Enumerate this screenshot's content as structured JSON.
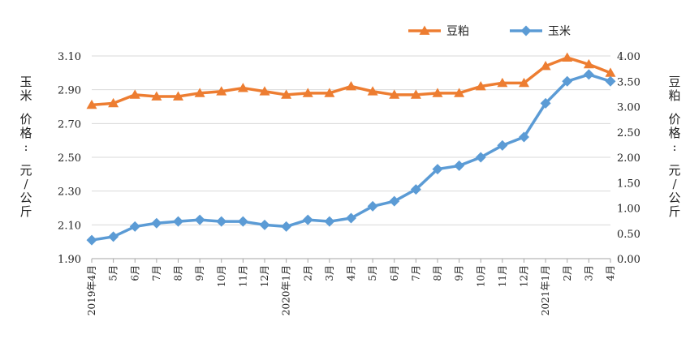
{
  "chart_data": {
    "type": "line",
    "legend_position": "top-right",
    "grid": true,
    "categories": [
      "2019年4月",
      "5月",
      "6月",
      "7月",
      "8月",
      "9月",
      "10月",
      "11月",
      "12月",
      "2020年1月",
      "2月",
      "3月",
      "4月",
      "5月",
      "6月",
      "7月",
      "8月",
      "9月",
      "10月",
      "11月",
      "12月",
      "2021年1月",
      "2月",
      "3月",
      "4月"
    ],
    "left_axis": {
      "label": "玉米  价格:  元/公斤",
      "range": [
        1.9,
        3.1
      ],
      "ticks": [
        "3.10",
        "2.90",
        "2.70",
        "2.50",
        "2.30",
        "2.10",
        "1.90"
      ]
    },
    "right_axis": {
      "label": "豆粕  价格:  元/公斤",
      "range": [
        0.0,
        4.0
      ],
      "ticks": [
        "4.00",
        "3.50",
        "3.00",
        "2.50",
        "2.00",
        "1.50",
        "1.00",
        "0.50",
        "0.00"
      ]
    },
    "series": [
      {
        "name": "豆粕",
        "axis": "left",
        "color": "#ed7d31",
        "marker": "triangle",
        "values": [
          2.81,
          2.82,
          2.87,
          2.86,
          2.86,
          2.88,
          2.89,
          2.91,
          2.89,
          2.87,
          2.88,
          2.88,
          2.92,
          2.89,
          2.87,
          2.87,
          2.88,
          2.88,
          2.92,
          2.94,
          2.94,
          3.04,
          3.09,
          3.05,
          3.0
        ]
      },
      {
        "name": "玉米",
        "axis": "left",
        "color": "#5b9bd5",
        "marker": "diamond",
        "values": [
          2.01,
          2.03,
          2.09,
          2.11,
          2.12,
          2.13,
          2.12,
          2.12,
          2.1,
          2.09,
          2.13,
          2.12,
          2.14,
          2.21,
          2.24,
          2.31,
          2.43,
          2.45,
          2.5,
          2.57,
          2.62,
          2.82,
          2.95,
          2.99,
          2.95
        ]
      }
    ]
  }
}
